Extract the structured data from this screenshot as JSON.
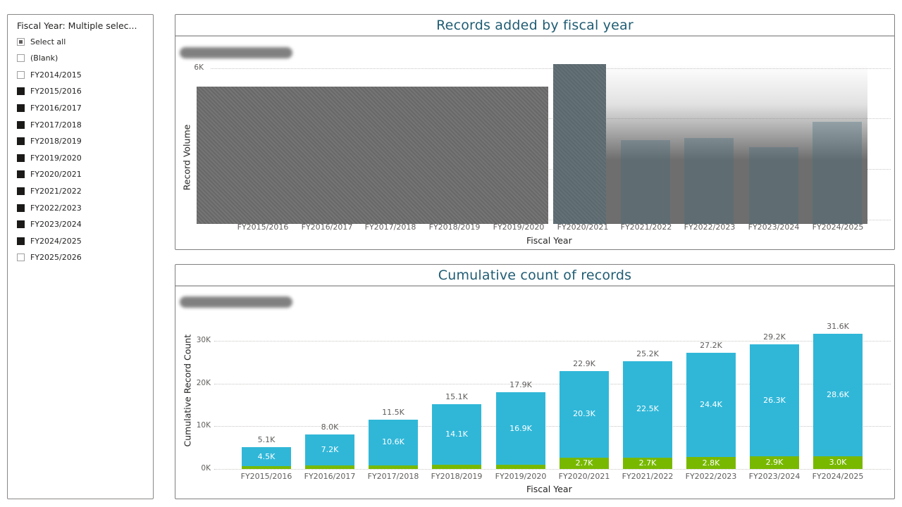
{
  "slicer": {
    "header": "Fiscal Year: Multiple selec...",
    "items": [
      {
        "label": "Select all",
        "state": "partial"
      },
      {
        "label": "(Blank)",
        "state": "unchecked"
      },
      {
        "label": "FY2014/2015",
        "state": "unchecked"
      },
      {
        "label": "FY2015/2016",
        "state": "checked"
      },
      {
        "label": "FY2016/2017",
        "state": "checked"
      },
      {
        "label": "FY2017/2018",
        "state": "checked"
      },
      {
        "label": "FY2018/2019",
        "state": "checked"
      },
      {
        "label": "FY2019/2020",
        "state": "checked"
      },
      {
        "label": "FY2020/2021",
        "state": "checked"
      },
      {
        "label": "FY2021/2022",
        "state": "checked"
      },
      {
        "label": "FY2022/2023",
        "state": "checked"
      },
      {
        "label": "FY2023/2024",
        "state": "checked"
      },
      {
        "label": "FY2024/2025",
        "state": "checked"
      },
      {
        "label": "FY2025/2026",
        "state": "unchecked"
      }
    ]
  },
  "colors": {
    "title": "#1f5c73",
    "series_main": "#30b7d8",
    "series_base": "#78b900",
    "redacted": "#6e6e6e"
  },
  "top_chart": {
    "title": "Records added by fiscal year",
    "xlabel": "Fiscal Year",
    "ylabel": "Record Volume",
    "yticks": [
      "6K"
    ],
    "note": "Plot area largely redacted/obscured in screenshot"
  },
  "bottom_chart": {
    "title": "Cumulative count of records",
    "xlabel": "Fiscal Year",
    "ylabel": "Cumulative Record Count",
    "yticks": [
      "0K",
      "10K",
      "20K",
      "30K"
    ]
  },
  "chart_data": [
    {
      "type": "bar",
      "title": "Records added by fiscal year",
      "xlabel": "Fiscal Year",
      "ylabel": "Record Volume",
      "categories": [
        "FY2015/2016",
        "FY2016/2017",
        "FY2017/2018",
        "FY2018/2019",
        "FY2019/2020",
        "FY2020/2021",
        "FY2021/2022",
        "FY2022/2023",
        "FY2023/2024",
        "FY2024/2025"
      ],
      "yticks_visible": [
        "6K"
      ],
      "ylim": [
        0,
        6000
      ],
      "grid": true,
      "values": null,
      "annotations": [
        "Data values obscured/redacted in screenshot"
      ]
    },
    {
      "type": "bar",
      "stacked": true,
      "title": "Cumulative count of records",
      "xlabel": "Fiscal Year",
      "ylabel": "Cumulative Record Count",
      "categories": [
        "FY2015/2016",
        "FY2016/2017",
        "FY2017/2018",
        "FY2018/2019",
        "FY2019/2020",
        "FY2020/2021",
        "FY2021/2022",
        "FY2022/2023",
        "FY2023/2024",
        "FY2024/2025"
      ],
      "series": [
        {
          "name": "base",
          "color": "#78b900",
          "values": [
            600,
            800,
            900,
            1000,
            1000,
            2700,
            2700,
            2800,
            2900,
            3000
          ],
          "labels": [
            "",
            "",
            "",
            "",
            "",
            "2.7K",
            "2.7K",
            "2.8K",
            "2.9K",
            "3.0K"
          ]
        },
        {
          "name": "main",
          "color": "#30b7d8",
          "values": [
            4500,
            7200,
            10600,
            14100,
            16900,
            20300,
            22500,
            24400,
            26300,
            28600
          ],
          "labels": [
            "4.5K",
            "7.2K",
            "10.6K",
            "14.1K",
            "16.9K",
            "20.3K",
            "22.5K",
            "24.4K",
            "26.3K",
            "28.6K"
          ]
        }
      ],
      "totals": [
        5100,
        8000,
        11500,
        15100,
        17900,
        22900,
        25200,
        27200,
        29200,
        31600
      ],
      "total_labels": [
        "5.1K",
        "8.0K",
        "11.5K",
        "15.1K",
        "17.9K",
        "22.9K",
        "25.2K",
        "27.2K",
        "29.2K",
        "31.6K"
      ],
      "yticks": [
        "0K",
        "10K",
        "20K",
        "30K"
      ],
      "ylim": [
        0,
        30000
      ],
      "grid": true,
      "legend": null
    }
  ]
}
